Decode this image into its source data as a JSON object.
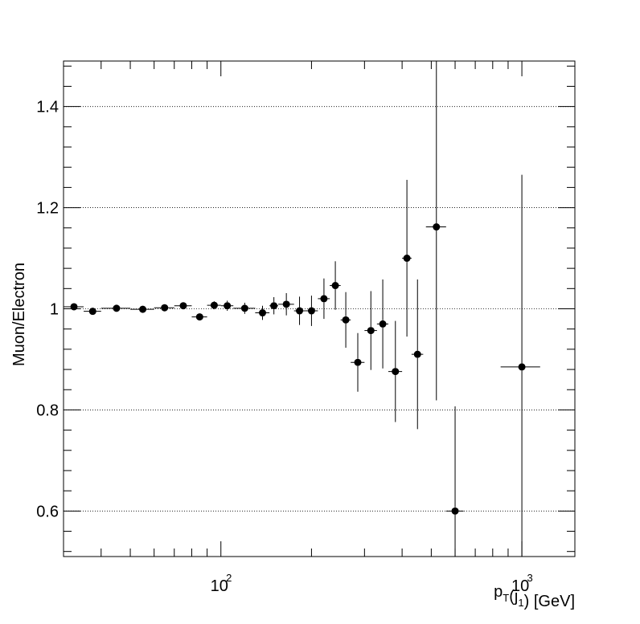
{
  "chart_data": {
    "type": "scatter",
    "title": "",
    "xlabel": "p_T(j_1) [GeV]",
    "ylabel": "Muon/Electron",
    "x_scale": "log",
    "xlim": [
      30,
      1500
    ],
    "ylim": [
      0.51,
      1.49
    ],
    "y_ticks": [
      0.6,
      0.8,
      1.0,
      1.2,
      1.4
    ],
    "y_tick_labels": [
      "0.6",
      "0.8",
      "1",
      "1.2",
      "1.4"
    ],
    "x_ticks": [
      100,
      1000
    ],
    "x_tick_labels": [
      "10^2",
      "10^3"
    ],
    "grid": "horizontal dotted",
    "legend": "none",
    "colors": {
      "marker": "#000000",
      "grid": "#000000"
    },
    "series": [
      {
        "points": [
          {
            "x": 32.5,
            "xlo": 30,
            "xhi": 35,
            "y": 1.004,
            "err": 0.004
          },
          {
            "x": 37.5,
            "xlo": 35,
            "xhi": 40,
            "y": 0.995,
            "err": 0.004
          },
          {
            "x": 45,
            "xlo": 40,
            "xhi": 50,
            "y": 1.001,
            "err": 0.004
          },
          {
            "x": 55,
            "xlo": 50,
            "xhi": 60,
            "y": 0.999,
            "err": 0.004
          },
          {
            "x": 65,
            "xlo": 60,
            "xhi": 70,
            "y": 1.002,
            "err": 0.005
          },
          {
            "x": 75,
            "xlo": 70,
            "xhi": 80,
            "y": 1.006,
            "err": 0.005
          },
          {
            "x": 85,
            "xlo": 80,
            "xhi": 90,
            "y": 0.984,
            "err": 0.007
          },
          {
            "x": 95,
            "xlo": 90,
            "xhi": 100,
            "y": 1.007,
            "err": 0.008
          },
          {
            "x": 105,
            "xlo": 100,
            "xhi": 110,
            "y": 1.006,
            "err": 0.01
          },
          {
            "x": 120,
            "xlo": 110,
            "xhi": 130,
            "y": 1.001,
            "err": 0.011
          },
          {
            "x": 137.5,
            "xlo": 130,
            "xhi": 145,
            "y": 0.992,
            "err": 0.014
          },
          {
            "x": 150,
            "xlo": 145,
            "xhi": 155,
            "y": 1.006,
            "err": 0.017
          },
          {
            "x": 165,
            "xlo": 155,
            "xhi": 175,
            "y": 1.009,
            "err": 0.022
          },
          {
            "x": 182.5,
            "xlo": 175,
            "xhi": 190,
            "y": 0.996,
            "err": 0.028
          },
          {
            "x": 200,
            "xlo": 190,
            "xhi": 210,
            "y": 0.996,
            "err": 0.03
          },
          {
            "x": 220,
            "xlo": 210,
            "xhi": 230,
            "y": 1.02,
            "err": 0.04
          },
          {
            "x": 240,
            "xlo": 230,
            "xhi": 250,
            "y": 1.046,
            "err": 0.048
          },
          {
            "x": 260,
            "xlo": 250,
            "xhi": 270,
            "y": 0.978,
            "err": 0.055
          },
          {
            "x": 285,
            "xlo": 270,
            "xhi": 300,
            "y": 0.894,
            "err": 0.058
          },
          {
            "x": 315,
            "xlo": 300,
            "xhi": 330,
            "y": 0.957,
            "err": 0.078
          },
          {
            "x": 345,
            "xlo": 330,
            "xhi": 360,
            "y": 0.97,
            "err": 0.088
          },
          {
            "x": 380,
            "xlo": 360,
            "xhi": 400,
            "y": 0.876,
            "err": 0.1
          },
          {
            "x": 415,
            "xlo": 400,
            "xhi": 430,
            "y": 1.1,
            "err": 0.155
          },
          {
            "x": 450,
            "xlo": 430,
            "xhi": 470,
            "y": 0.91,
            "err": 0.148
          },
          {
            "x": 520,
            "xlo": 480,
            "xhi": 560,
            "y": 1.162,
            "err": 0.343
          },
          {
            "x": 600,
            "xlo": 560,
            "xhi": 640,
            "y": 0.6,
            "err": 0.207
          },
          {
            "x": 1000,
            "xlo": 850,
            "xhi": 1150,
            "y": 0.885,
            "err": 0.38
          }
        ]
      }
    ]
  }
}
